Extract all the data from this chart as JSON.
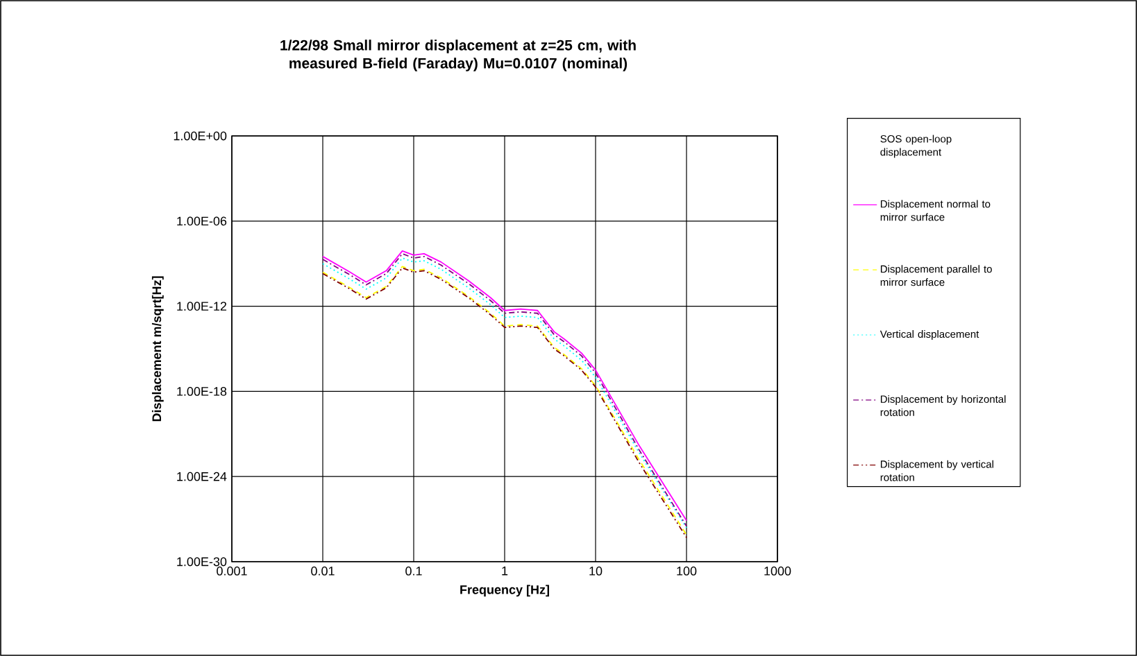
{
  "chart_data": {
    "type": "line",
    "title": "1/22/98 Small mirror displacement at z=25 cm, with measured B-field (Faraday) Mu=0.0107  (nominal)",
    "xlabel": "Frequency [Hz]",
    "ylabel": "Displacement m/sqrt[Hz]",
    "x": [
      0.01,
      0.02,
      0.03,
      0.05,
      0.075,
      0.1,
      0.13,
      0.2,
      0.4,
      0.7,
      1,
      1.5,
      2.3,
      3.5,
      4.5,
      7,
      10,
      30,
      100
    ],
    "series": [
      {
        "name": "SOS open-loop displacement",
        "values": [
          null,
          null,
          null,
          null,
          null,
          null,
          null,
          null,
          null,
          null,
          null,
          null,
          null,
          null,
          null,
          null,
          null,
          null,
          null
        ]
      },
      {
        "name": "Displacement normal to mirror surface",
        "color": "#ff00ff",
        "line_style": "solid",
        "values": [
          3.2e-09,
          2.5e-10,
          5e-11,
          3.2e-10,
          7.9e-09,
          4e-09,
          5e-09,
          1.3e-09,
          6.3e-11,
          4e-12,
          5e-13,
          6.3e-13,
          5e-13,
          1.6e-14,
          5e-15,
          5e-16,
          3.2e-17,
          1.6e-22,
          7.9e-28
        ]
      },
      {
        "name": "Displacement parallel to mirror surface",
        "color": "#ffff00",
        "line_style": "dashed",
        "values": [
          2.5e-10,
          2e-11,
          4e-12,
          2.5e-11,
          6.3e-10,
          3.2e-10,
          4e-10,
          1e-10,
          5e-12,
          3.2e-13,
          4e-14,
          5e-14,
          4e-14,
          1.3e-15,
          4e-16,
          4e-17,
          2.5e-18,
          1.6e-23,
          7.9e-29
        ]
      },
      {
        "name": "Vertical displacement",
        "color": "#00ffff",
        "line_style": "dotted",
        "values": [
          1e-09,
          7.9e-11,
          1.6e-11,
          1e-10,
          2.5e-09,
          1.3e-09,
          1.6e-09,
          4e-10,
          2e-11,
          1.3e-12,
          1.6e-13,
          2e-13,
          1.6e-13,
          5e-15,
          1.6e-15,
          1.6e-16,
          1e-17,
          5e-23,
          2.5e-28
        ]
      },
      {
        "name": "Displacement by horizontal rotation",
        "color": "#800080",
        "line_style": "dashdot",
        "values": [
          2e-09,
          1.6e-10,
          3.2e-11,
          2e-10,
          5e-09,
          2.5e-09,
          3.2e-09,
          7.9e-10,
          4e-11,
          2.5e-12,
          3.2e-13,
          4e-13,
          3.2e-13,
          1e-14,
          3.2e-15,
          3.2e-16,
          2e-17,
          7.9e-23,
          3.2e-28
        ]
      },
      {
        "name": "Displacement by vertical rotation",
        "color": "#800000",
        "line_style": "dashdotdot",
        "values": [
          2e-10,
          1.6e-11,
          3.2e-12,
          2e-11,
          5e-10,
          2.5e-10,
          3.2e-10,
          7.9e-11,
          4e-12,
          2.5e-13,
          3.2e-14,
          4e-14,
          3.2e-14,
          1e-15,
          3.2e-16,
          3.2e-17,
          2e-18,
          1e-23,
          5e-29
        ]
      }
    ],
    "log": "xy",
    "grid": true,
    "legend": "right",
    "xlim": [
      0.001,
      1000
    ],
    "xticks": [
      0.001,
      0.01,
      0.1,
      1,
      10,
      100,
      1000
    ],
    "ylim": [
      1e-30,
      1
    ],
    "yticks": [
      {
        "value": 1e-30,
        "label": "1.00E-30"
      },
      {
        "value": 1e-24,
        "label": "1.00E-24"
      },
      {
        "value": 1e-18,
        "label": "1.00E-18"
      },
      {
        "value": 1e-12,
        "label": "1.00E-12"
      },
      {
        "value": 1e-06,
        "label": "1.00E-06"
      },
      {
        "value": 1,
        "label": "1.00E+00"
      }
    ]
  }
}
